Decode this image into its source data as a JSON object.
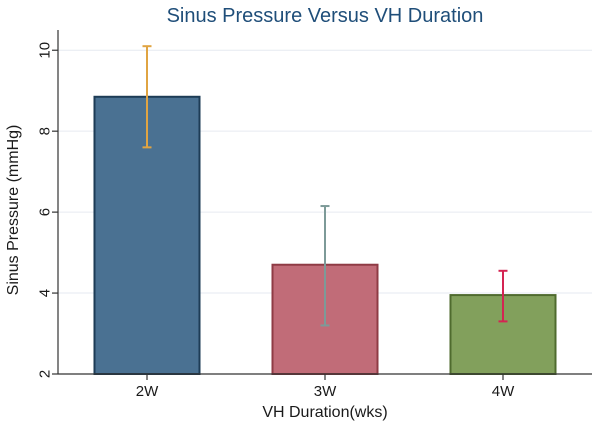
{
  "chart_data": {
    "type": "bar",
    "title": "Sinus Pressure Versus VH Duration",
    "xlabel": "VH Duration(wks)",
    "ylabel": "Sinus Pressure (mmHg)",
    "ylim": [
      2,
      10.5
    ],
    "yticks": [
      2,
      4,
      6,
      8,
      10
    ],
    "grid": true,
    "categories": [
      "2W",
      "3W",
      "4W"
    ],
    "values": [
      8.85,
      4.7,
      3.95
    ],
    "error_bars": [
      {
        "low": 7.6,
        "high": 10.1
      },
      {
        "low": 3.2,
        "high": 6.15
      },
      {
        "low": 3.3,
        "high": 4.55
      }
    ],
    "bar_fill_colors": [
      "#4a7192",
      "#c16c78",
      "#82a05c"
    ],
    "bar_edge_colors": [
      "#1d3c56",
      "#8f3b45",
      "#4f6b2e"
    ],
    "error_bar_colors": [
      "#e0a442",
      "#7d9a98",
      "#d42452"
    ]
  }
}
